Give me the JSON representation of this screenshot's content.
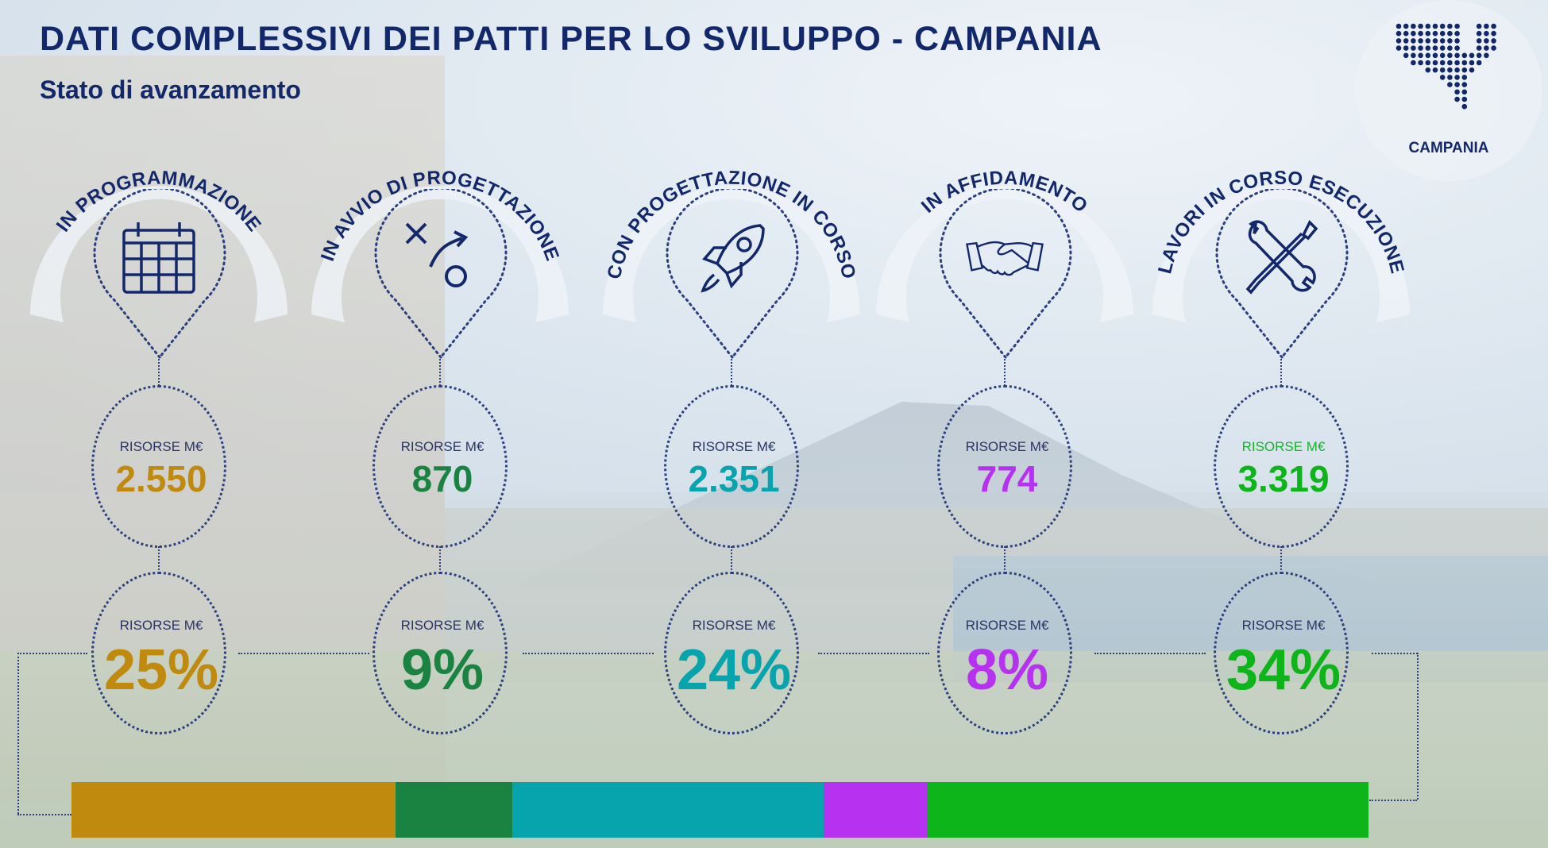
{
  "header": {
    "title": "DATI COMPLESSIVI DEI PATTI PER LO SVILUPPO - CAMPANIA",
    "subtitle": "Stato di avanzamento"
  },
  "logo": {
    "label": "CAMPANIA"
  },
  "stages": [
    {
      "label": "IN PROGRAMMAZIONE",
      "icon": "calendar-icon",
      "risorse_label": "RISORSE M€",
      "risorse_value": "2.550",
      "percent_label": "RISORSE M€",
      "percent": "25%",
      "percent_value": 25,
      "color": "#c08a0e",
      "label_color": "#2a3566"
    },
    {
      "label": "IN AVVIO DI PROGETTAZIONE",
      "icon": "strategy-icon",
      "risorse_label": "RISORSE M€",
      "risorse_value": "870",
      "percent_label": "RISORSE M€",
      "percent": "9%",
      "percent_value": 9,
      "color": "#1a8342",
      "label_color": "#2a3566"
    },
    {
      "label": "CON PROGETTAZIONE IN CORSO",
      "icon": "rocket-icon",
      "risorse_label": "RISORSE M€",
      "risorse_value": "2.351",
      "percent_label": "RISORSE M€",
      "percent": "24%",
      "percent_value": 24,
      "color": "#07a4ae",
      "label_color": "#2a3566"
    },
    {
      "label": "IN AFFIDAMENTO",
      "icon": "handshake-icon",
      "risorse_label": "RISORSE M€",
      "risorse_value": "774",
      "percent_label": "RISORSE M€",
      "percent": "8%",
      "percent_value": 8,
      "color": "#b631f0",
      "label_color": "#2a3566"
    },
    {
      "label": "LAVORI IN CORSO ESECUZIONE",
      "icon": "tools-icon",
      "risorse_label": "RISORSE M€",
      "risorse_value": "3.319",
      "percent_label": "RISORSE M€",
      "percent": "34%",
      "percent_value": 34,
      "color": "#0db51b",
      "label_color": "#2a3566",
      "risorse_label_color": "#14b52a"
    }
  ]
}
